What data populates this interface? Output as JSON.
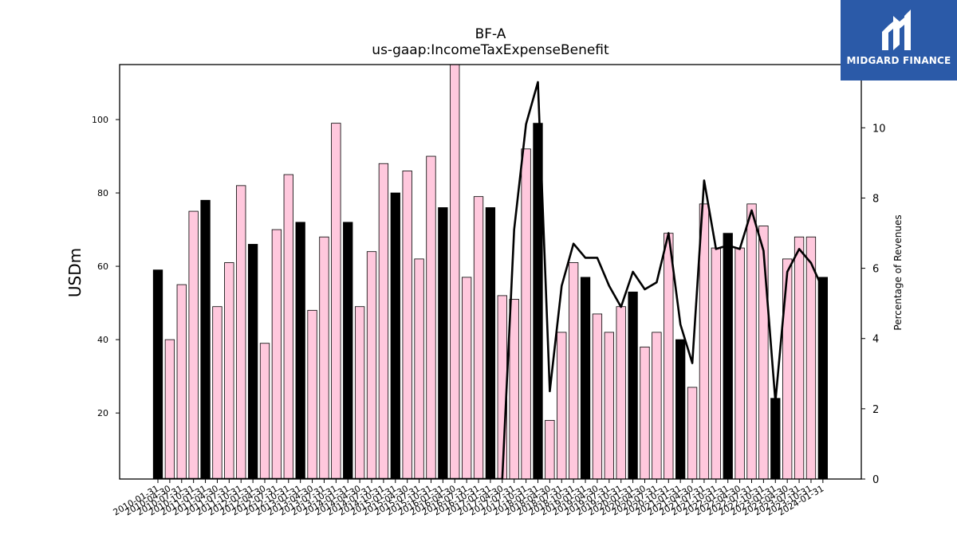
{
  "brand": {
    "name": "MIDGARD FINANCE",
    "logo_icon": "midgard-m-logo-icon",
    "background_color": "#2b5aa8"
  },
  "chart_data": {
    "type": "bar",
    "title": "BF-A",
    "subtitle": "us-gaap:IncomeTaxExpenseBenefit",
    "ylabel": "USDm",
    "y2label": "Percentage of Revenues",
    "ylim": [
      2,
      115
    ],
    "y2lim": [
      0,
      11.8
    ],
    "yticks": [
      20,
      40,
      60,
      80,
      100
    ],
    "y2ticks": [
      0,
      2,
      4,
      6,
      8,
      10
    ],
    "grid": false,
    "colors": {
      "annual": "#000000",
      "quarterly": "#ffc8dd",
      "line": "#000000"
    },
    "categories": [
      "2010-01-31",
      "2010-04-30",
      "2010-07-31",
      "2010-10-31",
      "2011-01-31",
      "2011-04-30",
      "2011-07-31",
      "2011-10-31",
      "2012-01-31",
      "2012-04-30",
      "2012-07-31",
      "2012-10-31",
      "2013-01-31",
      "2013-04-30",
      "2013-07-31",
      "2013-10-31",
      "2014-01-31",
      "2014-04-30",
      "2014-07-31",
      "2014-10-31",
      "2015-01-31",
      "2015-04-30",
      "2015-07-31",
      "2015-10-31",
      "2016-01-31",
      "2016-04-30",
      "2016-07-31",
      "2016-10-31",
      "2017-01-31",
      "2017-04-30",
      "2017-07-31",
      "2017-10-31",
      "2018-01-31",
      "2018-04-30",
      "2018-07-31",
      "2018-10-31",
      "2019-01-31",
      "2019-04-30",
      "2019-07-31",
      "2019-10-31",
      "2020-01-31",
      "2020-04-30",
      "2020-07-31",
      "2020-10-31",
      "2021-01-31",
      "2021-04-30",
      "2021-07-31",
      "2021-10-31",
      "2022-01-31",
      "2022-04-30",
      "2022-07-31",
      "2022-10-31",
      "2023-01-31",
      "2023-04-30",
      "2023-07-31",
      "2023-10-31",
      "2024-01-31"
    ],
    "annual": [
      true,
      false,
      false,
      false,
      true,
      false,
      false,
      false,
      true,
      false,
      false,
      false,
      true,
      false,
      false,
      false,
      true,
      false,
      false,
      false,
      true,
      false,
      false,
      false,
      true,
      false,
      false,
      false,
      true,
      false,
      false,
      false,
      true,
      false,
      false,
      false,
      true,
      false,
      false,
      false,
      true,
      false,
      false,
      false,
      true,
      false,
      false,
      false,
      true,
      false,
      false,
      false,
      true,
      false,
      false,
      false,
      true
    ],
    "series": [
      {
        "name": "",
        "axis": "left",
        "values": [
          59,
          40,
          55,
          75,
          78,
          49,
          61,
          82,
          66,
          39,
          70,
          85,
          72,
          48,
          68,
          99,
          72,
          49,
          64,
          88,
          80,
          86,
          62,
          90,
          76,
          116,
          57,
          79,
          76,
          52,
          51,
          92,
          99,
          18,
          42,
          61,
          57,
          47,
          42,
          49,
          53,
          38,
          42,
          69,
          40,
          27,
          77,
          65,
          69,
          65,
          77,
          71,
          24,
          62,
          68,
          68,
          57
        ]
      },
      {
        "name": "",
        "axis": "right",
        "type": "line",
        "values": [
          0,
          0,
          0,
          0,
          0,
          0,
          0,
          0,
          0,
          0,
          0,
          0,
          0,
          0,
          0,
          0,
          0,
          0,
          0,
          0,
          0,
          0,
          0,
          0,
          0,
          0,
          0,
          0,
          0,
          0,
          7.1,
          10.1,
          11.3,
          2.5,
          5.5,
          6.7,
          6.3,
          6.3,
          5.5,
          4.9,
          5.9,
          5.4,
          5.6,
          7.0,
          4.4,
          3.3,
          8.5,
          6.55,
          6.65,
          6.55,
          7.65,
          6.5,
          2.2,
          5.9,
          6.55,
          6.15,
          5.4
        ]
      }
    ]
  }
}
